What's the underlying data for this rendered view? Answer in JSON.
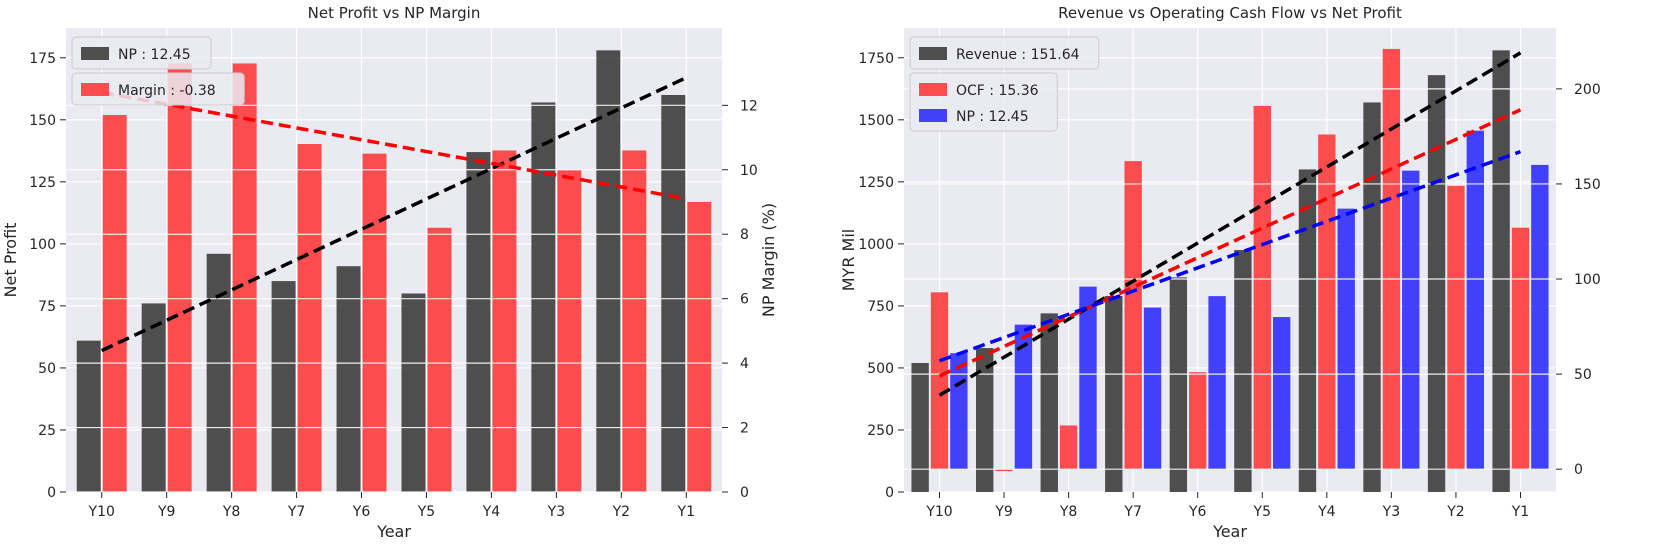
{
  "chart_data": [
    {
      "type": "bar",
      "title": "Net Profit vs NP Margin",
      "xlabel": "Year",
      "ylabel": "Net Profit",
      "ylabel_right": "NP Margin (%)",
      "categories": [
        "Y10",
        "Y9",
        "Y8",
        "Y7",
        "Y6",
        "Y5",
        "Y4",
        "Y3",
        "Y2",
        "Y1"
      ],
      "ylim": [
        0,
        187
      ],
      "ylim_right": [
        0,
        14.4
      ],
      "yticks": [
        0,
        25,
        50,
        75,
        100,
        125,
        150,
        175
      ],
      "yticks_right": [
        0,
        2,
        4,
        6,
        8,
        10,
        12
      ],
      "grid": true,
      "legend_position": "top-left",
      "series": [
        {
          "name": "NP : 12.45",
          "axis": "left",
          "color": "#333333",
          "values": [
            61,
            76,
            96,
            85,
            91,
            80,
            137,
            157,
            178,
            160
          ],
          "trend": [
            57,
            167
          ]
        },
        {
          "name": "Margin : -0.38",
          "axis": "right",
          "color": "#ff3030",
          "values": [
            11.7,
            13.3,
            13.3,
            10.8,
            10.5,
            8.2,
            10.6,
            10.0,
            10.6,
            9.0
          ],
          "trend": [
            12.4,
            9.1
          ]
        }
      ]
    },
    {
      "type": "bar",
      "title": "Revenue vs Operating Cash Flow vs Net Profit",
      "xlabel": "Year",
      "ylabel": "MYR Mil",
      "categories": [
        "Y10",
        "Y9",
        "Y8",
        "Y7",
        "Y6",
        "Y5",
        "Y4",
        "Y3",
        "Y2",
        "Y1"
      ],
      "ylim": [
        0,
        1870
      ],
      "ylim_right": [
        -12,
        232
      ],
      "yticks": [
        0,
        250,
        500,
        750,
        1000,
        1250,
        1500,
        1750
      ],
      "yticks_right": [
        0,
        50,
        100,
        150,
        200
      ],
      "grid": true,
      "legend_position": "top-left",
      "series": [
        {
          "name": "Revenue : 151.64",
          "axis": "left",
          "color": "#333333",
          "values": [
            520,
            580,
            720,
            790,
            865,
            975,
            1300,
            1570,
            1680,
            1780
          ],
          "trend": [
            390,
            1770
          ]
        },
        {
          "name": "OCF : 15.36",
          "axis": "right",
          "color": "#ff3030",
          "values": [
            93,
            -1,
            23,
            162,
            51,
            191,
            176,
            221,
            149,
            127
          ],
          "trend": [
            49,
            189
          ]
        },
        {
          "name": "NP : 12.45",
          "axis": "right",
          "color": "#2323ff",
          "values": [
            61,
            76,
            96,
            85,
            91,
            80,
            137,
            157,
            178,
            160
          ],
          "trend": [
            57,
            167
          ]
        }
      ]
    }
  ]
}
